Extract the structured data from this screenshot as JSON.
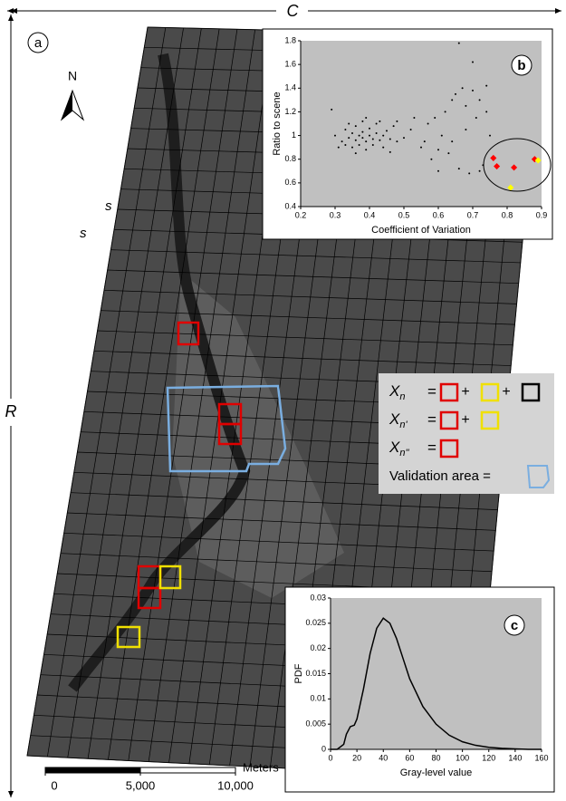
{
  "labels": {
    "panel_a": "a",
    "panel_b": "b",
    "panel_c": "c",
    "width": "C",
    "height": "R",
    "cell_x": "s",
    "cell_y": "s",
    "north": "N"
  },
  "scale_bar": {
    "unit": "Meters",
    "ticks": [
      0,
      {
        "value": 5000,
        "label": "5,000"
      },
      {
        "value": 10000,
        "label": "10,000"
      }
    ]
  },
  "legend": {
    "plus": "+",
    "rows": [
      {
        "symbol": "X",
        "sub": "n",
        "eq": "=",
        "boxes": [
          "#e00000",
          "#f0e000",
          "#000000"
        ]
      },
      {
        "symbol": "X",
        "sub": "n'",
        "eq": "=",
        "boxes": [
          "#e00000",
          "#f0e000"
        ]
      },
      {
        "symbol": "X",
        "sub": "n''",
        "eq": "=",
        "boxes": [
          "#e00000"
        ]
      }
    ],
    "validation": "Validation area =",
    "validation_color": "#7aaee0"
  },
  "inset_b": {
    "type": "scatter",
    "xlabel": "Coefficient of Variation",
    "ylabel": "Ratio to scene",
    "xlim": [
      0.2,
      0.9
    ],
    "ylim": [
      0.4,
      1.8
    ],
    "xticks": [
      0.2,
      0.3,
      0.4,
      0.5,
      0.6,
      0.7,
      0.8,
      0.9
    ],
    "yticks": [
      0.4,
      0.6,
      0.8,
      1,
      1.2,
      1.4,
      1.6,
      1.8
    ],
    "series": [
      {
        "color": "#000000",
        "x": [
          0.3,
          0.32,
          0.33,
          0.34,
          0.35,
          0.35,
          0.36,
          0.36,
          0.37,
          0.37,
          0.38,
          0.38,
          0.38,
          0.39,
          0.39,
          0.4,
          0.4,
          0.41,
          0.41,
          0.42,
          0.42,
          0.43,
          0.44,
          0.44,
          0.45,
          0.46,
          0.47,
          0.48,
          0.33,
          0.34,
          0.36,
          0.39,
          0.29,
          0.31,
          0.43,
          0.5,
          0.52,
          0.55,
          0.57,
          0.58,
          0.6,
          0.62,
          0.63,
          0.64,
          0.65,
          0.66,
          0.67,
          0.68,
          0.69,
          0.7,
          0.71,
          0.72,
          0.73,
          0.74,
          0.75,
          0.61,
          0.59,
          0.56,
          0.66,
          0.7,
          0.53,
          0.64,
          0.6,
          0.68,
          0.72,
          0.46,
          0.48,
          0.74
        ],
        "y": [
          1.0,
          0.95,
          1.05,
          0.98,
          1.02,
          0.9,
          1.08,
          0.96,
          1.0,
          0.92,
          1.12,
          0.98,
          1.03,
          0.95,
          0.88,
          1.0,
          1.06,
          0.97,
          0.92,
          1.02,
          1.1,
          0.96,
          1.0,
          0.9,
          1.04,
          0.97,
          1.08,
          0.95,
          0.92,
          1.1,
          0.85,
          1.15,
          1.22,
          0.9,
          1.12,
          0.98,
          1.05,
          0.9,
          1.1,
          0.8,
          0.7,
          1.2,
          0.85,
          1.3,
          1.35,
          0.72,
          1.4,
          1.25,
          0.68,
          1.38,
          1.15,
          1.3,
          0.75,
          1.2,
          1.0,
          1.0,
          1.15,
          0.95,
          1.78,
          1.62,
          1.15,
          0.95,
          0.88,
          1.05,
          0.7,
          0.86,
          1.12,
          1.42
        ]
      },
      {
        "color": "#ff0000",
        "x": [
          0.76,
          0.77,
          0.82,
          0.88
        ],
        "y": [
          0.81,
          0.74,
          0.73,
          0.8
        ]
      },
      {
        "color": "#ffff00",
        "x": [
          0.81,
          0.89
        ],
        "y": [
          0.56,
          0.79
        ]
      }
    ]
  },
  "inset_c": {
    "type": "line",
    "xlabel": "Gray-level value",
    "ylabel": "PDF",
    "xlim": [
      0,
      160
    ],
    "ylim": [
      0,
      0.03
    ],
    "xticks": [
      0,
      20,
      40,
      60,
      80,
      100,
      120,
      140,
      160
    ],
    "yticks": [
      0,
      0.005,
      0.01,
      0.015,
      0.02,
      0.025,
      0.03
    ],
    "x": [
      0,
      5,
      10,
      12,
      15,
      18,
      20,
      25,
      30,
      35,
      40,
      45,
      50,
      55,
      60,
      70,
      80,
      90,
      100,
      110,
      120,
      130,
      140,
      150,
      160
    ],
    "y": [
      0,
      0,
      0.001,
      0.003,
      0.0045,
      0.0048,
      0.006,
      0.012,
      0.019,
      0.024,
      0.026,
      0.025,
      0.022,
      0.018,
      0.014,
      0.0085,
      0.005,
      0.0028,
      0.0015,
      0.0008,
      0.0004,
      0.0002,
      0.0001,
      0,
      0
    ]
  }
}
